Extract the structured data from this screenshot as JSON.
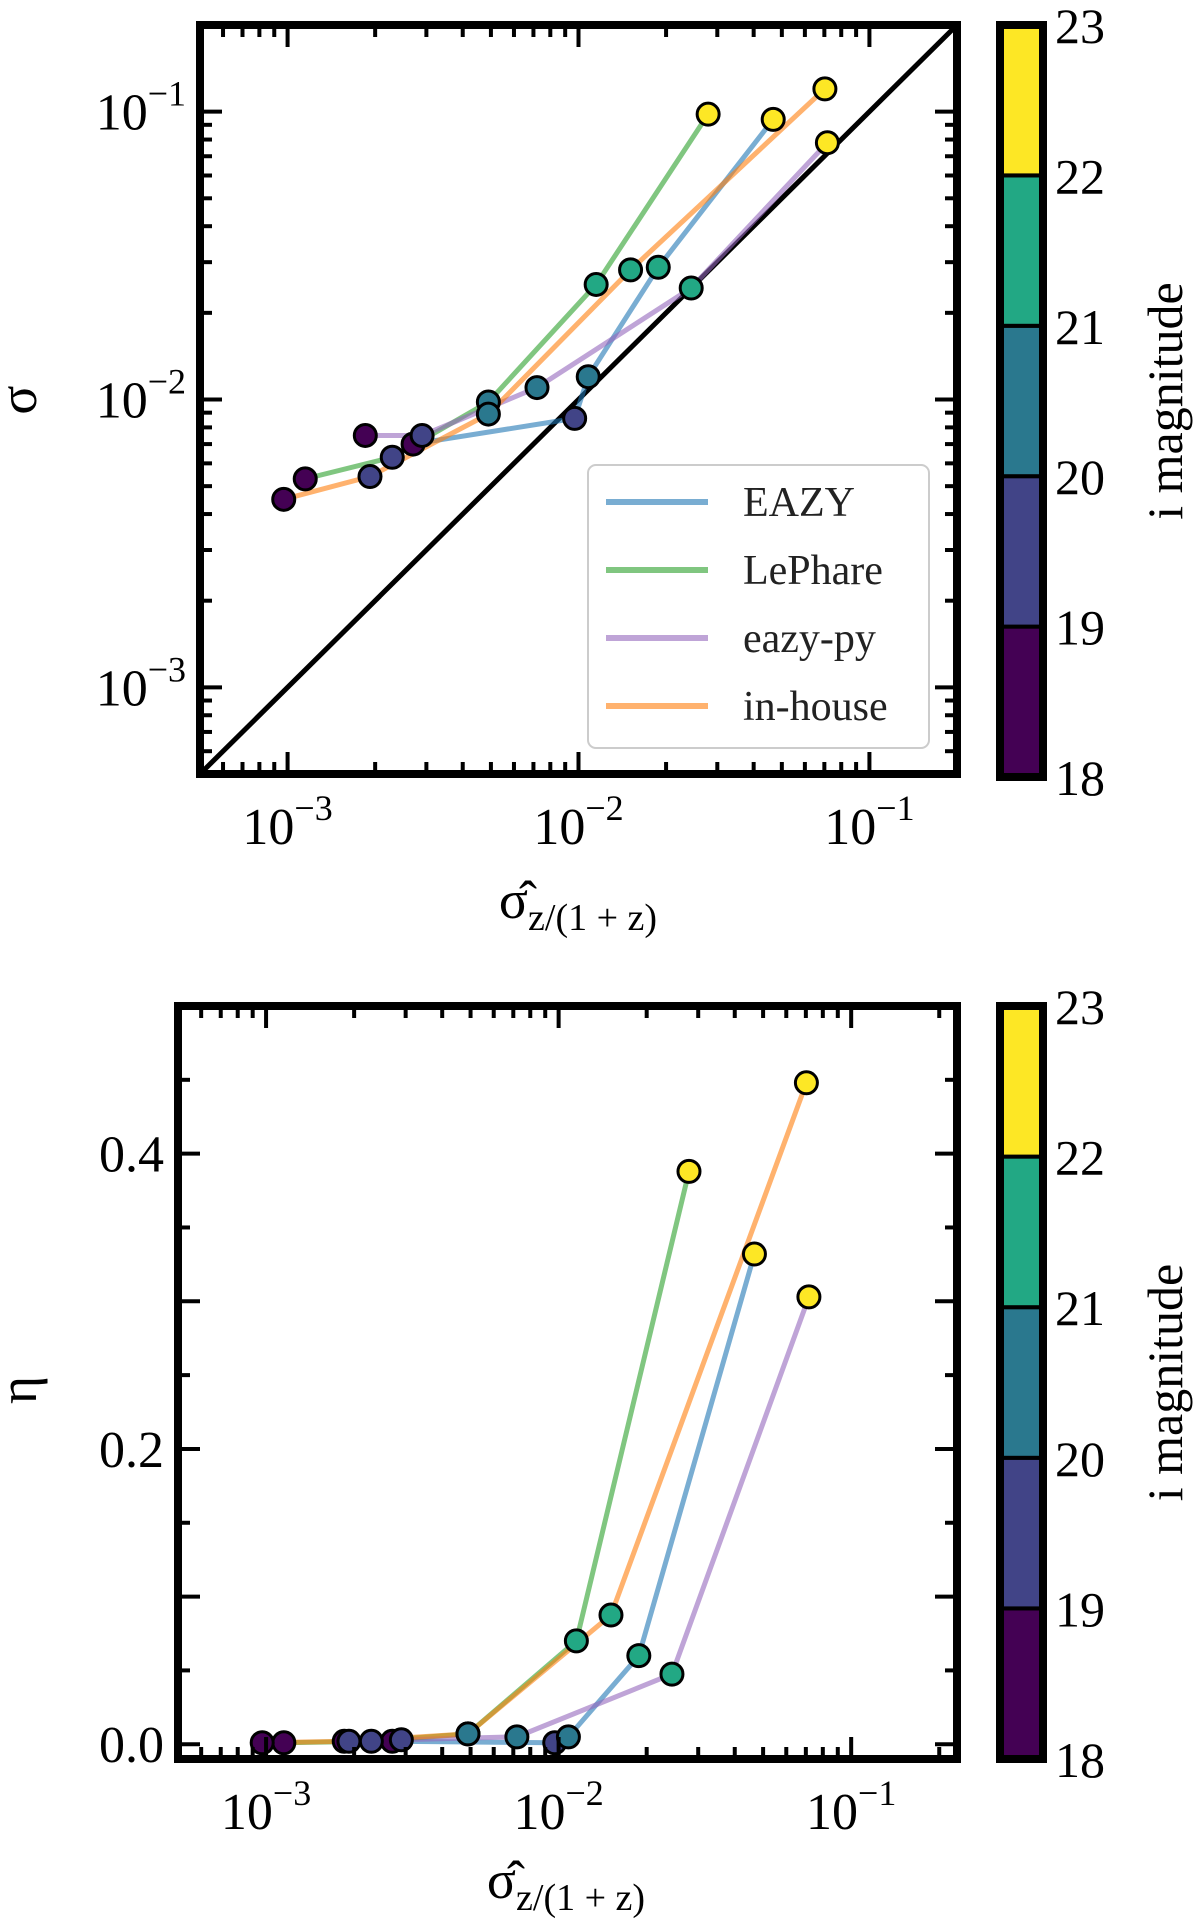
{
  "colorbar": {
    "label": "i magnitude",
    "ticks": [
      "18",
      "19",
      "20",
      "21",
      "22",
      "23"
    ],
    "bins": [
      {
        "range": [
          18,
          19
        ],
        "color": "#440154"
      },
      {
        "range": [
          19,
          20
        ],
        "color": "#414487"
      },
      {
        "range": [
          20,
          21
        ],
        "color": "#2a788e"
      },
      {
        "range": [
          21,
          22
        ],
        "color": "#22a884"
      },
      {
        "range": [
          22,
          23
        ],
        "color": "#fde725"
      }
    ]
  },
  "legend": {
    "placement": "lower-right",
    "entries": [
      {
        "name": "EAZY",
        "color": "#1f77b4"
      },
      {
        "name": "LePhare",
        "color": "#2ca02c"
      },
      {
        "name": "eazy-py",
        "color": "#9467bd"
      },
      {
        "name": "in-house",
        "color": "#ff7f0e"
      }
    ]
  },
  "chart_data": [
    {
      "type": "line",
      "xlabel": "σ̂",
      "xlabel_sub": "z/(1 + z)",
      "ylabel": "σ",
      "xscale": "log",
      "yscale": "log",
      "xlim": [
        0.0005,
        0.2
      ],
      "ylim": [
        0.0005,
        0.2
      ],
      "xticks": [
        {
          "base": "10",
          "exp": "−3",
          "value": 0.001
        },
        {
          "base": "10",
          "exp": "−2",
          "value": 0.01
        },
        {
          "base": "10",
          "exp": "−1",
          "value": 0.1
        }
      ],
      "yticks": [
        {
          "base": "10",
          "exp": "−3",
          "value": 0.001
        },
        {
          "base": "10",
          "exp": "−2",
          "value": 0.01
        },
        {
          "base": "10",
          "exp": "−1",
          "value": 0.1
        }
      ],
      "reference_line": "y = x",
      "marker_color_by": "i magnitude bin",
      "series": [
        {
          "name": "EAZY",
          "x": [
            0.0027,
            0.0097,
            0.0108,
            0.0188,
            0.0467
          ],
          "y": [
            0.007,
            0.0086,
            0.012,
            0.0288,
            0.094
          ]
        },
        {
          "name": "LePhare",
          "x": [
            0.00115,
            0.00229,
            0.0049,
            0.0115,
            0.0279
          ],
          "y": [
            0.0053,
            0.0063,
            0.0098,
            0.0251,
            0.098
          ]
        },
        {
          "name": "eazy-py",
          "x": [
            0.00185,
            0.0029,
            0.0072,
            0.0244,
            0.0717
          ],
          "y": [
            0.0075,
            0.0075,
            0.011,
            0.0244,
            0.078
          ]
        },
        {
          "name": "in-house",
          "x": [
            0.00097,
            0.00192,
            0.0049,
            0.0151,
            0.0703
          ],
          "y": [
            0.0045,
            0.0054,
            0.0089,
            0.0282,
            0.12
          ]
        }
      ]
    },
    {
      "type": "line",
      "xlabel": "σ̂",
      "xlabel_sub": "z/(1 + z)",
      "ylabel": "η",
      "xscale": "log",
      "yscale": "linear",
      "xlim": [
        0.0005,
        0.23
      ],
      "ylim": [
        -0.01,
        0.5
      ],
      "xticks": [
        {
          "base": "10",
          "exp": "−3",
          "value": 0.001
        },
        {
          "base": "10",
          "exp": "−2",
          "value": 0.01
        },
        {
          "base": "10",
          "exp": "−1",
          "value": 0.1
        }
      ],
      "yticks": [
        {
          "label": "0.0",
          "value": 0.0
        },
        {
          "label": "0.2",
          "value": 0.2
        },
        {
          "label": "0.4",
          "value": 0.4
        }
      ],
      "marker_color_by": "i magnitude bin",
      "series": [
        {
          "name": "EAZY",
          "x": [
            0.0027,
            0.0097,
            0.0108,
            0.0188,
            0.0467
          ],
          "y": [
            0.002,
            0.001,
            0.005,
            0.06,
            0.332
          ]
        },
        {
          "name": "LePhare",
          "x": [
            0.00115,
            0.00229,
            0.0049,
            0.0115,
            0.0279
          ],
          "y": [
            0.001,
            0.002,
            0.007,
            0.07,
            0.388
          ]
        },
        {
          "name": "eazy-py",
          "x": [
            0.00185,
            0.0029,
            0.0072,
            0.0244,
            0.0717
          ],
          "y": [
            0.002,
            0.003,
            0.005,
            0.0475,
            0.303
          ]
        },
        {
          "name": "in-house",
          "x": [
            0.00097,
            0.00192,
            0.0049,
            0.0151,
            0.0703
          ],
          "y": [
            0.001,
            0.002,
            0.007,
            0.0875,
            0.448
          ]
        }
      ]
    }
  ]
}
